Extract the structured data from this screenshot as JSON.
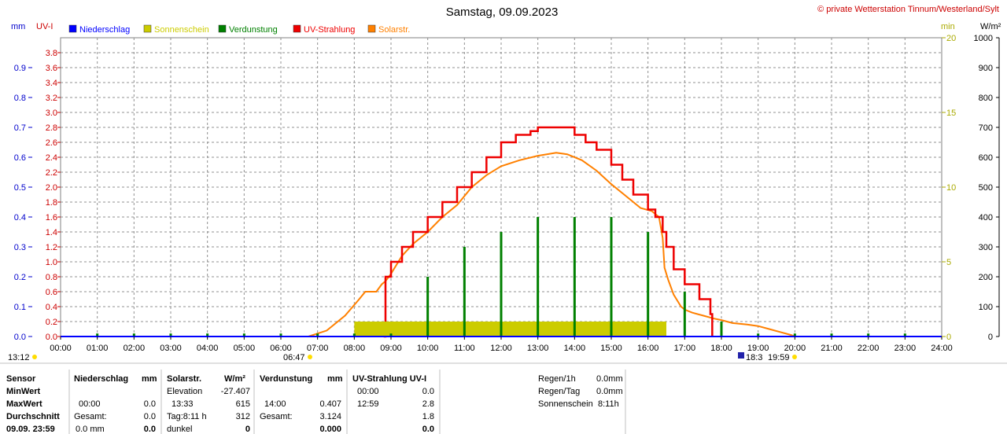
{
  "title": "Samstag, 09.09.2023",
  "copyright": "© private Wetterstation Tinnum/Westerland/Sylt",
  "units": {
    "mm": "mm",
    "uvi": "UV-I",
    "min": "min",
    "wm2": "W/m²"
  },
  "legend": [
    {
      "label": "Niederschlag",
      "color": "#0000ff"
    },
    {
      "label": "Sonnenschein",
      "color": "#cccc00"
    },
    {
      "label": "Verdunstung",
      "color": "#008000"
    },
    {
      "label": "UV-Strahlung",
      "color": "#ee0000"
    },
    {
      "label": "Solarstr.",
      "color": "#ff8000"
    }
  ],
  "markers": {
    "moon_left": "13:12",
    "sunrise": "06:47",
    "sunset": "19:59",
    "moonset": "18:3"
  },
  "chart_data": {
    "type": "line",
    "x_ticks": [
      "00:00",
      "01:00",
      "02:00",
      "03:00",
      "04:00",
      "05:00",
      "06:00",
      "07:00",
      "08:00",
      "09:00",
      "10:00",
      "11:00",
      "12:00",
      "13:00",
      "14:00",
      "15:00",
      "16:00",
      "17:00",
      "18:00",
      "19:00",
      "20:00",
      "21:00",
      "22:00",
      "23:00",
      "24:00"
    ],
    "xlim": [
      0,
      24
    ],
    "axes": {
      "mm": {
        "ticks": [
          "0.0",
          "0.1",
          "0.2",
          "0.3",
          "0.4",
          "0.5",
          "0.6",
          "0.7",
          "0.8",
          "0.9"
        ],
        "ylim": [
          0,
          1.0
        ],
        "color": "#0000cc"
      },
      "uvi": {
        "ticks": [
          "0.0",
          "0.2",
          "0.4",
          "0.6",
          "0.8",
          "1.0",
          "1.2",
          "1.4",
          "1.6",
          "1.8",
          "2.0",
          "2.2",
          "2.4",
          "2.6",
          "2.8",
          "3.0",
          "3.2",
          "3.4",
          "3.6",
          "3.8"
        ],
        "ylim": [
          0,
          4.0
        ],
        "color": "#cc0000"
      },
      "min": {
        "ticks": [
          "0",
          "5",
          "10",
          "15",
          "20"
        ],
        "ylim": [
          0,
          20
        ],
        "color": "#aaaa00"
      },
      "wm2": {
        "ticks": [
          "0",
          "100",
          "200",
          "300",
          "400",
          "500",
          "600",
          "700",
          "800",
          "900",
          "1000"
        ],
        "ylim": [
          0,
          1000
        ],
        "color": "#000000"
      }
    },
    "series": [
      {
        "name": "Solarstr.",
        "axis": "wm2",
        "color": "#ff8000",
        "x": [
          6.75,
          7.25,
          7.75,
          8.1,
          8.3,
          8.6,
          8.75,
          8.85,
          9.0,
          9.3,
          9.6,
          10.0,
          10.4,
          10.8,
          11.2,
          11.6,
          12.0,
          12.5,
          13.0,
          13.5,
          13.8,
          14.2,
          14.6,
          15.0,
          15.4,
          15.8,
          16.1,
          16.3,
          16.4,
          16.45,
          16.55,
          16.7,
          16.9,
          17.0,
          17.2,
          17.5,
          17.8,
          18.0,
          18.3,
          18.7,
          19.0,
          19.3,
          19.6,
          19.9,
          20.0
        ],
        "y": [
          0,
          20,
          70,
          120,
          150,
          150,
          175,
          185,
          210,
          270,
          310,
          350,
          400,
          440,
          500,
          540,
          570,
          590,
          605,
          615,
          610,
          590,
          555,
          510,
          470,
          430,
          420,
          400,
          330,
          230,
          190,
          140,
          100,
          90,
          80,
          70,
          60,
          55,
          45,
          40,
          35,
          25,
          15,
          5,
          0
        ]
      },
      {
        "name": "UV-Strahlung",
        "axis": "uvi",
        "color": "#ee0000",
        "x": [
          8.8,
          8.85,
          9.0,
          9.3,
          9.6,
          10.0,
          10.4,
          10.8,
          11.2,
          11.6,
          12.0,
          12.4,
          12.8,
          13.0,
          13.3,
          13.6,
          14.0,
          14.3,
          14.6,
          15.0,
          15.3,
          15.6,
          16.0,
          16.2,
          16.4,
          16.5,
          16.7,
          17.0,
          17.4,
          17.7,
          17.75
        ],
        "y": [
          0,
          0.8,
          1.0,
          1.2,
          1.4,
          1.6,
          1.8,
          2.0,
          2.2,
          2.4,
          2.6,
          2.7,
          2.75,
          2.8,
          2.8,
          2.8,
          2.7,
          2.6,
          2.5,
          2.3,
          2.1,
          1.9,
          1.7,
          1.6,
          1.4,
          1.2,
          0.9,
          0.7,
          0.5,
          0.3,
          0
        ]
      },
      {
        "name": "Sonnenschein",
        "axis": "min",
        "color": "#cccc00",
        "x_start": 8.0,
        "x_end": 16.5,
        "y": 1.0
      },
      {
        "name": "Verdunstung",
        "axis": "mm",
        "color": "#008000",
        "x": [
          1,
          2,
          3,
          4,
          5,
          6,
          7,
          8,
          9,
          10,
          11,
          12,
          13,
          14,
          15,
          16,
          17,
          18,
          19,
          20,
          21,
          22,
          23
        ],
        "y": [
          0.01,
          0.01,
          0.01,
          0.01,
          0.01,
          0.01,
          0.01,
          0.01,
          0.01,
          0.2,
          0.3,
          0.35,
          0.4,
          0.4,
          0.4,
          0.35,
          0.15,
          0.05,
          0.01,
          0.01,
          0.01,
          0.01,
          0.01
        ]
      }
    ]
  },
  "table": {
    "col_sensor": {
      "header": "Sensor",
      "rows": [
        "MinWert",
        "MaxWert",
        "Durchschnitt",
        "09.09. 23:59"
      ]
    },
    "col_niederschlag": {
      "header": "Niederschlag",
      "unit": "mm",
      "rows": [
        [
          "",
          ""
        ],
        [
          "00:00",
          "0.0"
        ],
        [
          "Gesamt:",
          "0.0"
        ],
        [
          "0.0 mm",
          "0.0"
        ]
      ]
    },
    "col_solar": {
      "header": "Solarstr.",
      "unit": "W/m²",
      "rows": [
        [
          "Elevation",
          "-27.407"
        ],
        [
          "13:33",
          "615"
        ],
        [
          "Tag:8:11 h",
          "312"
        ],
        [
          "dunkel",
          "0"
        ]
      ]
    },
    "col_verd": {
      "header": "Verdunstung",
      "unit": "mm",
      "rows": [
        [
          "",
          ""
        ],
        [
          "14:00",
          "0.407"
        ],
        [
          "Gesamt:",
          "3.124"
        ],
        [
          "",
          "0.000"
        ]
      ]
    },
    "col_uv": {
      "header": "UV-Strahlung UV-I",
      "rows": [
        [
          "00:00",
          "0.0"
        ],
        [
          "12:59",
          "2.8"
        ],
        [
          "",
          "1.8"
        ],
        [
          "",
          "0.0"
        ]
      ]
    },
    "col_rain": {
      "rows": [
        [
          "Regen/1h",
          "0.0mm"
        ],
        [
          "Regen/Tag",
          "0.0mm"
        ],
        [
          "Sonnenschein",
          "8:11h"
        ]
      ]
    }
  }
}
